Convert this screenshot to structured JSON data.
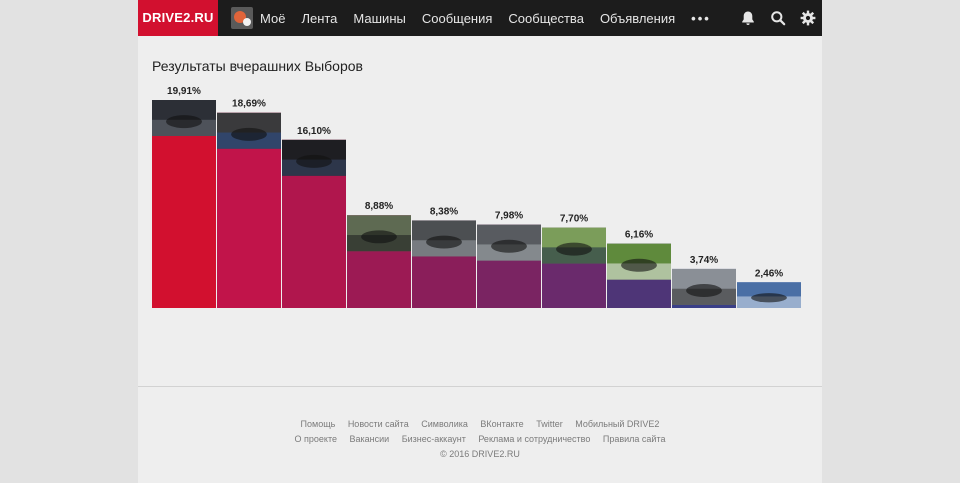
{
  "header": {
    "logo": "DRIVE2.RU",
    "nav": [
      "Моё",
      "Лента",
      "Машины",
      "Сообщения",
      "Сообщества",
      "Объявления"
    ],
    "more": "•••",
    "icons": [
      "bell-icon",
      "search-icon",
      "gear-icon"
    ]
  },
  "main": {
    "title": "Результаты вчерашних Выборов"
  },
  "chart_data": {
    "type": "bar",
    "title": "Результаты вчерашних Выборов",
    "values": [
      19.91,
      18.69,
      16.1,
      8.88,
      8.38,
      7.98,
      7.7,
      6.16,
      3.74,
      2.46
    ],
    "labels": [
      "19,91%",
      "18,69%",
      "16,10%",
      "8,88%",
      "8,38%",
      "7,98%",
      "7,70%",
      "6,16%",
      "3,74%",
      "2,46%"
    ],
    "colors": [
      "#d2102f",
      "#c1144a",
      "#b0164d",
      "#9c1a54",
      "#8a1e5a",
      "#7a2462",
      "#6a2a6c",
      "#4e3577",
      "#3a3f88",
      "#2a4ca0"
    ],
    "grid": false
  },
  "footer": {
    "row1": [
      "Помощь",
      "Новости сайта",
      "Символика",
      "ВКонтакте",
      "Twitter",
      "Мобильный DRIVE2"
    ],
    "row2": [
      "О проекте",
      "Вакансии",
      "Бизнес-аккаунт",
      "Реклама и сотрудничество",
      "Правила сайта"
    ],
    "copyright": "© 2016 DRIVE2.RU"
  }
}
